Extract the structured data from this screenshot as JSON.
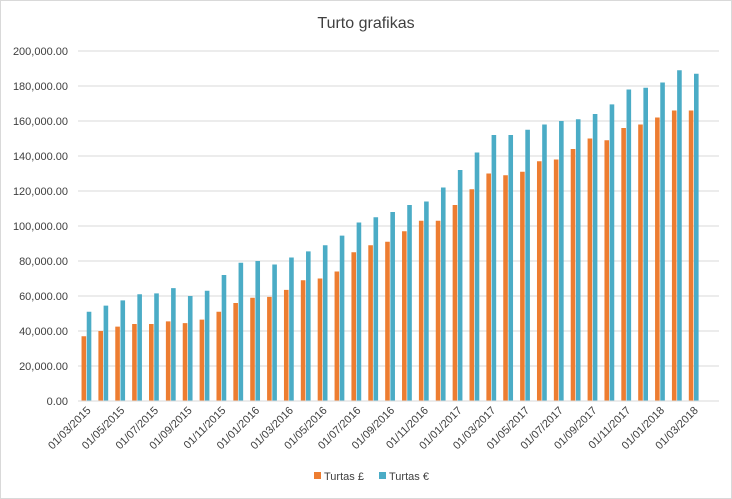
{
  "chart_data": {
    "type": "bar",
    "title": "Turto grafikas",
    "xlabel": "",
    "ylabel": "",
    "ylim": [
      0,
      200000
    ],
    "y_ticks": [
      "0.00",
      "20,000.00",
      "40,000.00",
      "60,000.00",
      "80,000.00",
      "100,000.00",
      "120,000.00",
      "140,000.00",
      "160,000.00",
      "180,000.00",
      "200,000.00"
    ],
    "categories": [
      "01/03/2015",
      "01/04/2015",
      "01/05/2015",
      "01/06/2015",
      "01/07/2015",
      "01/08/2015",
      "01/09/2015",
      "01/10/2015",
      "01/11/2015",
      "01/12/2015",
      "01/01/2016",
      "01/02/2016",
      "01/03/2016",
      "01/04/2016",
      "01/05/2016",
      "01/06/2016",
      "01/07/2016",
      "01/08/2016",
      "01/09/2016",
      "01/10/2016",
      "01/11/2016",
      "01/12/2016",
      "01/01/2017",
      "01/02/2017",
      "01/03/2017",
      "01/04/2017",
      "01/05/2017",
      "01/06/2017",
      "01/07/2017",
      "01/08/2017",
      "01/09/2017",
      "01/10/2017",
      "01/11/2017",
      "01/12/2017",
      "01/01/2018",
      "01/02/2018",
      "01/03/2018",
      "01/04/2018"
    ],
    "x_tick_labels": [
      "01/03/2015",
      "01/05/2015",
      "01/07/2015",
      "01/09/2015",
      "01/11/2015",
      "01/01/2016",
      "01/03/2016",
      "01/05/2016",
      "01/07/2016",
      "01/09/2016",
      "01/11/2016",
      "01/01/2017",
      "01/03/2017",
      "01/05/2017",
      "01/07/2017",
      "01/09/2017",
      "01/11/2017",
      "01/01/2018",
      "01/03/2018"
    ],
    "series": [
      {
        "name": "Turtas £",
        "color": "#ed7d31",
        "values": [
          37000,
          40000,
          42500,
          44000,
          44000,
          45500,
          44500,
          46500,
          51000,
          56000,
          59000,
          59500,
          63500,
          69000,
          70000,
          74000,
          85000,
          89000,
          91000,
          97000,
          103000,
          103000,
          112000,
          121000,
          130000,
          129000,
          131000,
          137000,
          138000,
          144000,
          150000,
          149000,
          156000,
          158000,
          162000,
          166000,
          166000,
          0
        ]
      },
      {
        "name": "Turtas €",
        "color": "#4bacc6",
        "values": [
          51000,
          54500,
          57500,
          61000,
          61500,
          64500,
          60000,
          63000,
          72000,
          79000,
          80000,
          78000,
          82000,
          85500,
          89000,
          94500,
          102000,
          105000,
          108000,
          112000,
          114000,
          122000,
          132000,
          142000,
          152000,
          152000,
          155000,
          158000,
          160000,
          161000,
          164000,
          169500,
          178000,
          179000,
          182000,
          189000,
          187000,
          0
        ]
      }
    ],
    "legend_position": "bottom",
    "grid": true
  }
}
